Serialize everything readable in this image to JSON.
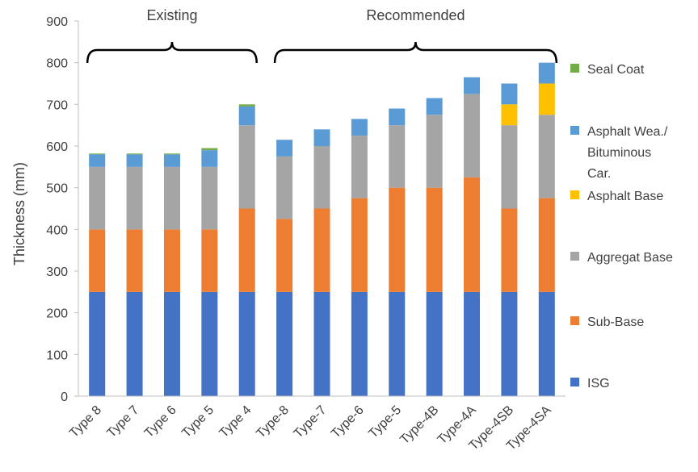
{
  "chart_data": {
    "type": "bar",
    "stacked": true,
    "title": "",
    "xlabel": "",
    "ylabel": "Thickness (mm)",
    "ylim": [
      0,
      900
    ],
    "yticks": [
      0,
      100,
      200,
      300,
      400,
      500,
      600,
      700,
      800,
      900
    ],
    "grid": false,
    "legend_position": "right",
    "categories": [
      "Type 8",
      "Type 7",
      "Type 6",
      "Type 5",
      "Type 4",
      "Type-8",
      "Type-7",
      "Type-6",
      "Type-5",
      "Type-4B",
      "Type-4A",
      "Type-4SB",
      "Type-4SA"
    ],
    "groups": [
      {
        "label": "Existing",
        "from": 0,
        "to": 4
      },
      {
        "label": "Recommended",
        "from": 5,
        "to": 12
      }
    ],
    "series": [
      {
        "name": "ISG",
        "color": "#4472C4",
        "values": [
          250,
          250,
          250,
          250,
          250,
          250,
          250,
          250,
          250,
          250,
          250,
          250,
          250
        ]
      },
      {
        "name": "Sub-Base",
        "color": "#ED7D31",
        "values": [
          150,
          150,
          150,
          150,
          200,
          175,
          200,
          225,
          250,
          250,
          275,
          200,
          225
        ]
      },
      {
        "name": "Aggregat Base",
        "color": "#A5A5A5",
        "values": [
          150,
          150,
          150,
          150,
          200,
          150,
          150,
          150,
          150,
          175,
          200,
          200,
          200
        ]
      },
      {
        "name": "Asphalt Base",
        "color": "#FFC000",
        "values": [
          0,
          0,
          0,
          0,
          0,
          0,
          0,
          0,
          0,
          0,
          0,
          50,
          75
        ]
      },
      {
        "name": "Asphalt Wea./ Bituminous Car.",
        "color": "#5B9BD5",
        "values": [
          30,
          30,
          30,
          40,
          45,
          40,
          40,
          40,
          40,
          40,
          40,
          50,
          50
        ]
      },
      {
        "name": "Seal Coat",
        "color": "#70AD47",
        "values": [
          2,
          2,
          2,
          5,
          5,
          0,
          0,
          0,
          0,
          0,
          0,
          0,
          0
        ]
      }
    ]
  }
}
